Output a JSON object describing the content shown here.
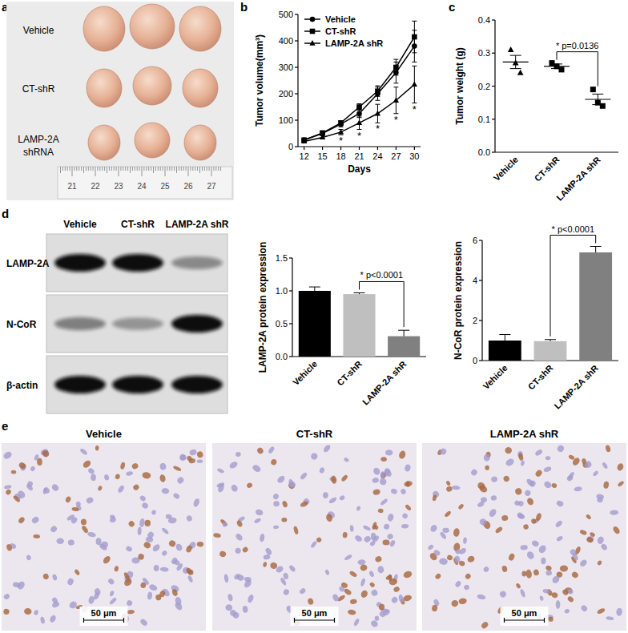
{
  "chart_data": [
    {
      "type": "line",
      "x": [
        12,
        15,
        18,
        21,
        24,
        27,
        30
      ],
      "xlim": [
        11,
        31
      ],
      "xticks": [
        12,
        15,
        18,
        21,
        24,
        27,
        30
      ],
      "ylim": [
        0,
        500
      ],
      "yticks": [
        0,
        100,
        200,
        300,
        400,
        500
      ],
      "x_label": "Days",
      "y_label": "Tumor volume(mm³)",
      "legend": "upper left",
      "series": [
        {
          "name": "Vehicle",
          "color": "#000000",
          "marker": "circle",
          "values": [
            25,
            50,
            85,
            125,
            200,
            280,
            380
          ],
          "errors": [
            5,
            6,
            10,
            15,
            25,
            40,
            60
          ]
        },
        {
          "name": "CT-shR",
          "color": "#000000",
          "marker": "square",
          "values": [
            25,
            52,
            90,
            150,
            210,
            300,
            415
          ],
          "errors": [
            5,
            6,
            8,
            12,
            20,
            30,
            60
          ]
        },
        {
          "name": "LAMP-2A shR",
          "color": "#000000",
          "marker": "triangle",
          "values": [
            20,
            35,
            55,
            90,
            125,
            175,
            235
          ],
          "errors": [
            4,
            6,
            10,
            25,
            35,
            50,
            70
          ]
        }
      ],
      "annotations": [
        {
          "x": 18,
          "text": "*"
        },
        {
          "x": 21,
          "text": "*"
        },
        {
          "x": 24,
          "text": "*"
        },
        {
          "x": 27,
          "text": "*"
        },
        {
          "x": 30,
          "text": "*"
        }
      ]
    },
    {
      "type": "scatter",
      "categories": [
        "Vehicle",
        "CT-shR",
        "LAMP-2A shR"
      ],
      "ylim": [
        0,
        0.4
      ],
      "yticks": [
        {
          "value": 0,
          "label": "0.0"
        },
        0.1,
        0.2,
        0.3,
        0.4
      ],
      "y_label": "Tumor weight (g)",
      "series": [
        {
          "marker": "triangle",
          "color": "#000000",
          "values": [
            0.31,
            0.27,
            0.24
          ],
          "mean": 0.273,
          "error": 0.02
        },
        {
          "marker": "square",
          "color": "#000000",
          "values": [
            0.27,
            0.26,
            0.25
          ],
          "mean": 0.26,
          "error": 0.007
        },
        {
          "marker": "square",
          "color": "#000000",
          "values": [
            0.19,
            0.15,
            0.14
          ],
          "mean": 0.16,
          "error": 0.016
        }
      ],
      "annotations": [
        {
          "between": [
            "CT-shR",
            "LAMP-2A shR"
          ],
          "text": "* p=0.0136"
        }
      ]
    },
    {
      "type": "bar",
      "categories": [
        "Vehicle",
        "CT-shR",
        "LAMP-2A shR"
      ],
      "values": [
        1.0,
        0.95,
        0.31
      ],
      "errors": [
        0.06,
        0.02,
        0.09
      ],
      "colors": [
        "#000000",
        "#bfbfbf",
        "#808080"
      ],
      "ylim": [
        0,
        1.5
      ],
      "yticks": [
        {
          "value": 0,
          "label": "0.0"
        },
        0.5,
        {
          "value": 1,
          "label": "1.0"
        },
        1.5
      ],
      "y_label": "LAMP-2A protein expression",
      "annotations": [
        {
          "between": [
            "CT-shR",
            "LAMP-2A shR"
          ],
          "text": "* p<0.0001"
        }
      ]
    },
    {
      "type": "bar",
      "categories": [
        "Vehicle",
        "CT-shR",
        "LAMP-2A shR"
      ],
      "values": [
        1.0,
        0.97,
        5.4
      ],
      "errors": [
        0.3,
        0.08,
        0.3
      ],
      "colors": [
        "#000000",
        "#bfbfbf",
        "#808080"
      ],
      "ylim": [
        0,
        6
      ],
      "yticks": [
        0,
        2,
        4,
        6
      ],
      "y_label": "N-CoR protein expression",
      "annotations": [
        {
          "between": [
            "CT-shR",
            "LAMP-2A shR"
          ],
          "text": "* p<0.0001"
        }
      ]
    }
  ],
  "panels": {
    "labels": [
      "a",
      "b",
      "c",
      "d",
      "e"
    ],
    "a": {
      "rows": [
        [
          "Vehicle"
        ],
        [
          "CT-shR"
        ],
        [
          "LAMP-2A",
          "shRNA"
        ]
      ],
      "ruler": [
        21,
        22,
        23,
        24,
        25,
        26,
        27
      ]
    },
    "d": {
      "columns": [
        "Vehicle",
        "CT-shR",
        "LAMP-2A shR"
      ],
      "rows": [
        "LAMP-2A",
        "N-CoR",
        "β-actin"
      ],
      "bands": [
        [
          1,
          1,
          0.4
        ],
        [
          0.45,
          0.35,
          1
        ],
        [
          1,
          1,
          1
        ]
      ]
    },
    "e": {
      "titles": [
        "Vehicle",
        "CT-shR",
        "LAMP-2A shR"
      ],
      "scale_bar": "50 μm"
    }
  }
}
